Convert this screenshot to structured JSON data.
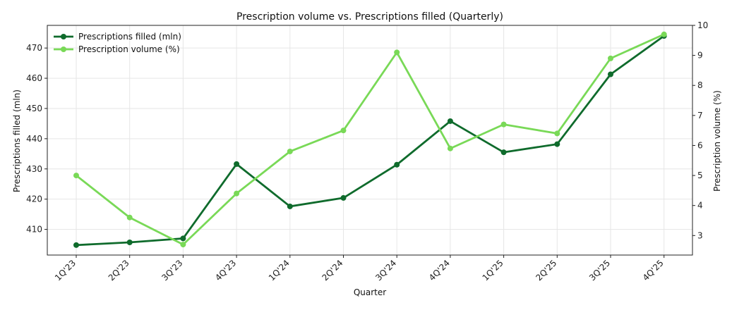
{
  "chart_data": {
    "type": "line",
    "title": "Prescription volume vs. Prescriptions filled (Quarterly)",
    "xlabel": "Quarter",
    "ylabel_left": "Prescriptions filled (mln)",
    "ylabel_right": "Prescription volume (%)",
    "categories": [
      "1Q'23",
      "2Q'23",
      "3Q'23",
      "4Q'23",
      "1Q'24",
      "2Q'24",
      "3Q'24",
      "4Q'24",
      "1Q'25",
      "2Q'25",
      "3Q'25",
      "4Q'25"
    ],
    "ylim_left": [
      401.5,
      477.5
    ],
    "ylim_right": [
      2.35,
      10.0
    ],
    "yticks_left": [
      410,
      420,
      430,
      440,
      450,
      460,
      470
    ],
    "yticks_right": [
      3,
      4,
      5,
      6,
      7,
      8,
      9,
      10
    ],
    "grid": true,
    "legend_position": "top-left",
    "series": [
      {
        "name": "Prescriptions filled (mln)",
        "axis": "left",
        "color": "#0f6b2c",
        "values": [
          404.8,
          405.7,
          407.0,
          431.6,
          417.6,
          420.4,
          431.4,
          445.8,
          435.5,
          438.2,
          461.3,
          474.0
        ]
      },
      {
        "name": "Prescription volume (%)",
        "axis": "right",
        "color": "#79d957",
        "values": [
          5.0,
          3.6,
          2.7,
          4.4,
          5.8,
          6.5,
          9.1,
          5.9,
          6.7,
          6.4,
          8.9,
          9.7
        ]
      }
    ]
  }
}
